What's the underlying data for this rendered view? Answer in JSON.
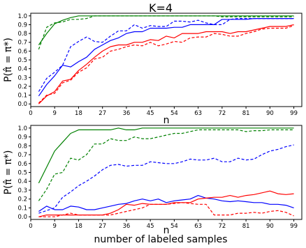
{
  "figure": {
    "title": "K=4",
    "footer_label": "number of labeled samples"
  },
  "colors": {
    "red": "#ff0000",
    "blue": "#0000ff",
    "green": "#008000"
  },
  "chart_data": [
    {
      "type": "line",
      "title": "K=4",
      "xlabel": "n",
      "ylabel": "P(π̂ = π*)",
      "xlim": [
        0,
        102
      ],
      "ylim": [
        -0.03,
        1.03
      ],
      "xticks": [
        0,
        9,
        18,
        27,
        36,
        45,
        54,
        63,
        72,
        81,
        90,
        99
      ],
      "yticks": [
        0.0,
        0.1,
        0.2,
        0.3,
        0.4,
        0.5,
        0.6,
        0.7,
        0.8,
        0.9,
        1.0
      ],
      "grid": false,
      "legend": "none",
      "x": [
        3,
        6,
        9,
        12,
        15,
        18,
        21,
        24,
        27,
        30,
        33,
        36,
        39,
        42,
        45,
        48,
        51,
        54,
        57,
        60,
        63,
        66,
        69,
        72,
        75,
        78,
        81,
        84,
        87,
        90,
        93,
        96,
        99
      ],
      "series": [
        {
          "color": "green",
          "dash": "solid",
          "values": [
            0.67,
            0.8,
            0.91,
            0.95,
            0.98,
            1.0,
            1.0,
            1.0,
            1.0,
            1.0,
            1.0,
            1.0,
            1.0,
            1.0,
            1.0,
            1.0,
            1.0,
            1.0,
            1.0,
            1.0,
            1.0,
            1.0,
            1.0,
            1.0,
            1.0,
            1.0,
            1.0,
            1.0,
            1.0,
            1.0,
            1.0,
            1.0,
            1.0
          ]
        },
        {
          "color": "green",
          "dash": "dashed",
          "values": [
            0.62,
            0.87,
            0.92,
            0.93,
            0.96,
            0.96,
            0.97,
            1.0,
            1.0,
            1.0,
            1.0,
            1.0,
            1.0,
            1.0,
            1.0,
            1.0,
            1.0,
            1.0,
            1.0,
            1.0,
            1.0,
            1.0,
            1.0,
            0.99,
            0.99,
            0.99,
            0.99,
            0.99,
            0.99,
            0.99,
            0.99,
            0.99,
            0.99
          ]
        },
        {
          "color": "blue",
          "dash": "solid",
          "values": [
            0.09,
            0.22,
            0.32,
            0.44,
            0.42,
            0.48,
            0.53,
            0.62,
            0.67,
            0.72,
            0.75,
            0.8,
            0.82,
            0.82,
            0.86,
            0.86,
            0.86,
            0.87,
            0.87,
            0.9,
            0.9,
            0.9,
            0.9,
            0.96,
            0.96,
            0.96,
            0.96,
            0.97,
            0.97,
            0.97,
            0.97,
            0.97,
            0.97
          ]
        },
        {
          "color": "blue",
          "dash": "dashed",
          "values": [
            0.14,
            0.29,
            0.36,
            0.44,
            0.65,
            0.71,
            0.76,
            0.71,
            0.7,
            0.77,
            0.83,
            0.83,
            0.9,
            0.86,
            0.89,
            0.88,
            0.88,
            0.94,
            0.94,
            0.93,
            0.95,
            0.92,
            0.9,
            0.9,
            0.96,
            0.97,
            0.97,
            0.97,
            0.97,
            0.97,
            0.97,
            0.97,
            0.97
          ]
        },
        {
          "color": "red",
          "dash": "solid",
          "values": [
            0.0,
            0.09,
            0.14,
            0.26,
            0.28,
            0.38,
            0.45,
            0.53,
            0.6,
            0.65,
            0.67,
            0.67,
            0.7,
            0.7,
            0.73,
            0.72,
            0.77,
            0.75,
            0.8,
            0.8,
            0.8,
            0.82,
            0.82,
            0.82,
            0.8,
            0.82,
            0.82,
            0.84,
            0.86,
            0.88,
            0.88,
            0.88,
            0.9
          ]
        },
        {
          "color": "red",
          "dash": "dashed",
          "values": [
            0.01,
            0.1,
            0.12,
            0.24,
            0.27,
            0.36,
            0.41,
            0.51,
            0.53,
            0.6,
            0.62,
            0.65,
            0.67,
            0.66,
            0.7,
            0.66,
            0.68,
            0.71,
            0.7,
            0.75,
            0.76,
            0.76,
            0.8,
            0.79,
            0.77,
            0.77,
            0.8,
            0.82,
            0.85,
            0.86,
            0.86,
            0.86,
            0.89
          ]
        }
      ]
    },
    {
      "type": "line",
      "title": "",
      "xlabel": "n",
      "ylabel": "P(π̂ = π*)",
      "xlim": [
        0,
        102
      ],
      "ylim": [
        -0.03,
        1.03
      ],
      "xticks": [
        0,
        9,
        18,
        27,
        36,
        45,
        54,
        63,
        72,
        81,
        90,
        99
      ],
      "yticks": [
        0.0,
        0.1,
        0.2,
        0.3,
        0.4,
        0.5,
        0.6,
        0.7,
        0.8,
        0.9,
        1.0
      ],
      "grid": false,
      "legend": "none",
      "x": [
        3,
        6,
        9,
        12,
        15,
        18,
        21,
        24,
        27,
        30,
        33,
        36,
        39,
        42,
        45,
        48,
        51,
        54,
        57,
        60,
        63,
        66,
        69,
        72,
        75,
        78,
        81,
        84,
        87,
        90,
        93,
        96,
        99
      ],
      "series": [
        {
          "color": "green",
          "dash": "solid",
          "values": [
            0.38,
            0.56,
            0.74,
            0.84,
            0.94,
            0.98,
            0.98,
            0.98,
            0.98,
            0.98,
            1.0,
            0.98,
            0.98,
            1.0,
            1.0,
            1.0,
            1.0,
            1.0,
            1.0,
            1.0,
            1.0,
            1.0,
            1.0,
            1.0,
            1.0,
            1.0,
            1.0,
            1.0,
            1.0,
            1.0,
            1.0,
            1.0,
            1.0
          ]
        },
        {
          "color": "green",
          "dash": "dashed",
          "values": [
            0.18,
            0.31,
            0.48,
            0.5,
            0.66,
            0.64,
            0.7,
            0.82,
            0.82,
            0.88,
            0.86,
            0.86,
            0.9,
            0.88,
            0.88,
            0.9,
            0.92,
            0.94,
            0.94,
            0.96,
            0.98,
            0.98,
            0.98,
            0.98,
            0.98,
            0.98,
            0.96,
            0.97,
            0.97,
            0.98,
            0.98,
            0.98,
            0.98
          ]
        },
        {
          "color": "blue",
          "dash": "dashed",
          "values": [
            0.04,
            0.07,
            0.1,
            0.22,
            0.28,
            0.35,
            0.4,
            0.46,
            0.53,
            0.58,
            0.59,
            0.57,
            0.58,
            0.58,
            0.62,
            0.61,
            0.6,
            0.6,
            0.62,
            0.65,
            0.64,
            0.64,
            0.66,
            0.62,
            0.62,
            0.66,
            0.64,
            0.65,
            0.7,
            0.74,
            0.76,
            0.79,
            0.81
          ]
        },
        {
          "color": "blue",
          "dash": "solid",
          "values": [
            0.06,
            0.12,
            0.08,
            0.08,
            0.12,
            0.11,
            0.08,
            0.08,
            0.1,
            0.12,
            0.14,
            0.15,
            0.18,
            0.2,
            0.18,
            0.2,
            0.16,
            0.18,
            0.19,
            0.2,
            0.24,
            0.21,
            0.2,
            0.18,
            0.17,
            0.18,
            0.17,
            0.16,
            0.16,
            0.14,
            0.14,
            0.13,
            0.1
          ]
        },
        {
          "color": "red",
          "dash": "solid",
          "values": [
            0.0,
            0.02,
            0.02,
            0.02,
            0.02,
            0.02,
            0.02,
            0.02,
            0.02,
            0.04,
            0.08,
            0.14,
            0.13,
            0.15,
            0.14,
            0.14,
            0.14,
            0.16,
            0.16,
            0.16,
            0.2,
            0.21,
            0.22,
            0.22,
            0.24,
            0.22,
            0.24,
            0.25,
            0.27,
            0.29,
            0.26,
            0.25,
            0.26
          ]
        },
        {
          "color": "red",
          "dash": "dashed",
          "values": [
            0.0,
            0.0,
            0.0,
            0.02,
            0.04,
            0.02,
            0.02,
            0.02,
            0.02,
            0.02,
            0.04,
            0.06,
            0.08,
            0.1,
            0.14,
            0.14,
            0.14,
            0.15,
            0.16,
            0.15,
            0.14,
            0.14,
            0.02,
            0.02,
            0.02,
            0.04,
            0.04,
            0.05,
            0.04,
            0.06,
            0.07,
            0.05,
            0.01
          ]
        }
      ]
    }
  ]
}
